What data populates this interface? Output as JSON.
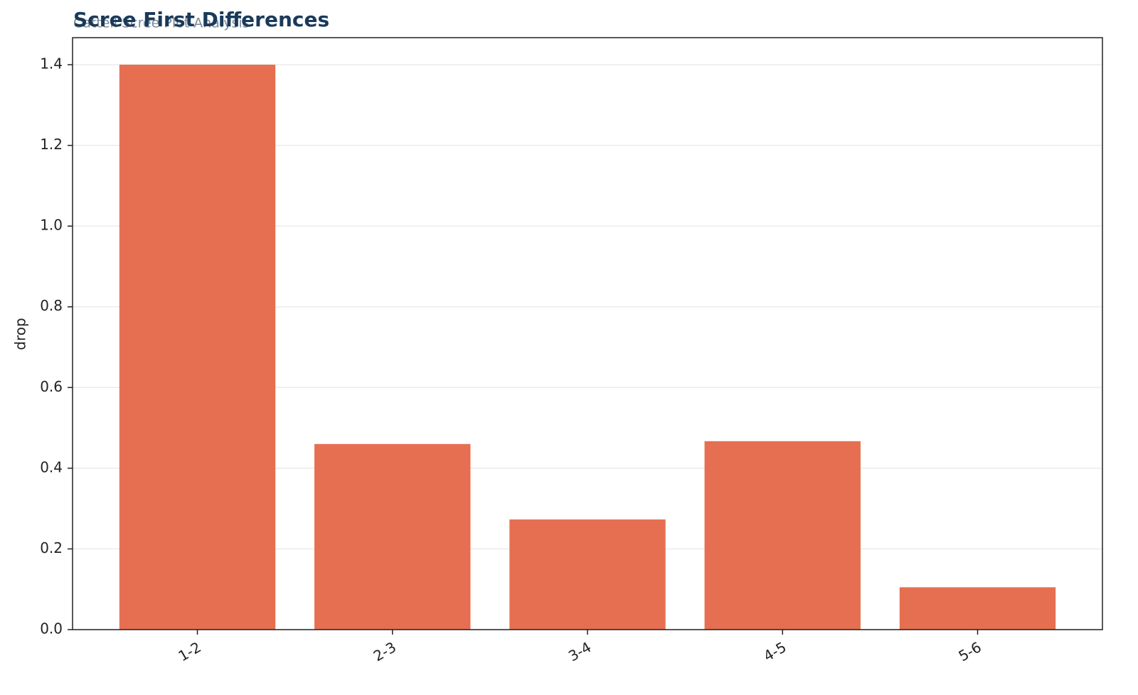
{
  "chart_data": {
    "type": "bar",
    "title": "Scree First Differences",
    "subtitle": "Cattell Scree Plot Analysis",
    "y_label": "drop",
    "categories": [
      "1-2",
      "2-3",
      "3-4",
      "4-5",
      "5-6"
    ],
    "values": [
      1.4,
      0.46,
      0.273,
      0.467,
      0.105
    ],
    "color": "#e66f51",
    "ylim": [
      0,
      1.467
    ],
    "yticks": [
      {
        "value": 0,
        "label": "0.0"
      },
      0.2,
      0.4,
      0.6,
      0.8,
      {
        "value": 1,
        "label": "1.0"
      },
      1.2,
      1.4
    ],
    "grid": true
  }
}
